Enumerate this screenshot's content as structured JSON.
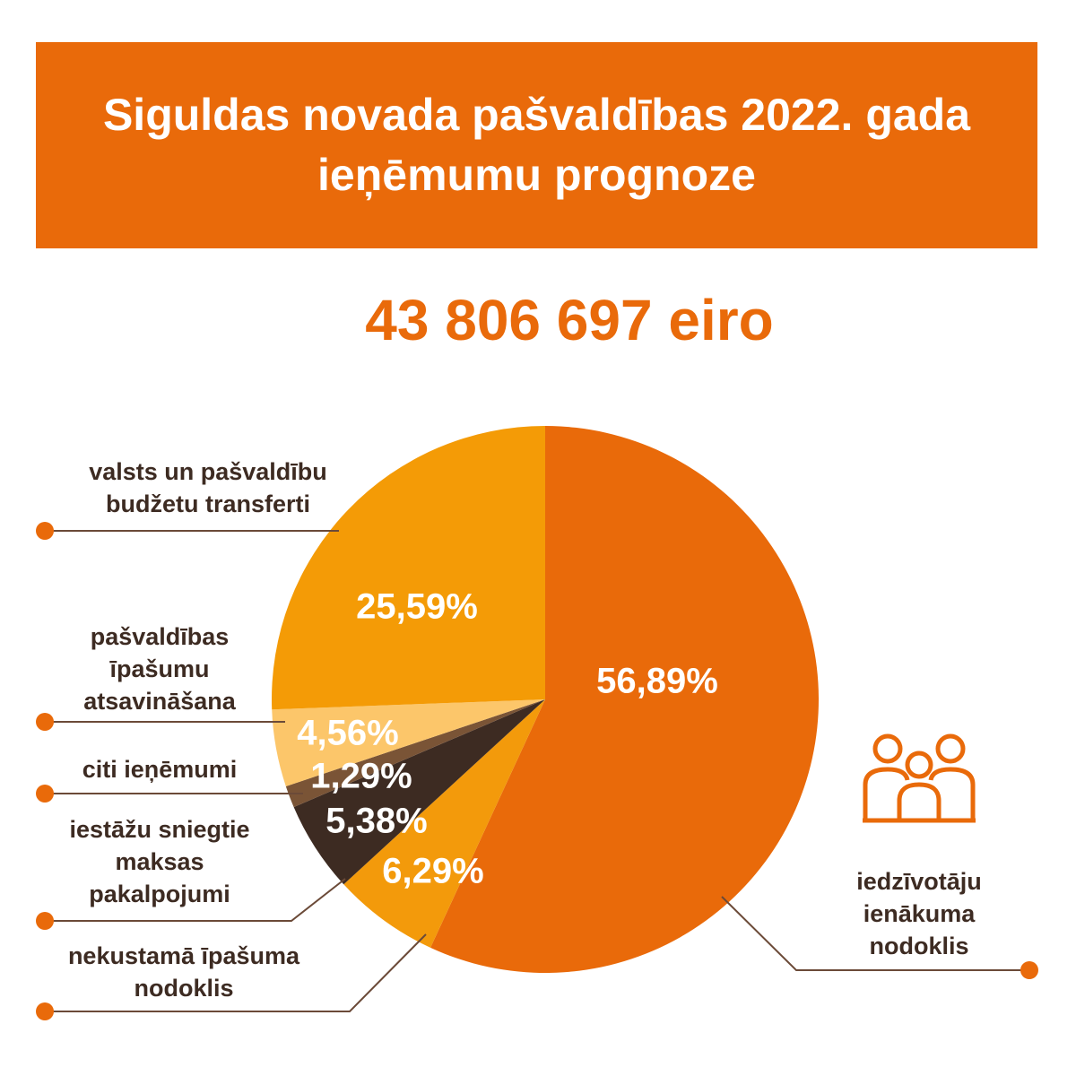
{
  "chart_data": {
    "type": "pie",
    "title": "Siguldas novada pašvaldības 2022. gada ieņēmumu prognoze",
    "subtitle": "43 806 697 eiro",
    "categories": [
      "iedzīvotāju ienākuma nodoklis",
      "nekustamā īpašuma nodoklis",
      "iestāžu sniegtie maksas pakalpojumi",
      "citi ieņēmumi",
      "pašvaldības īpašumu atsavināšana",
      "valsts un pašvaldību budžetu transferti"
    ],
    "values": [
      56.89,
      6.29,
      5.38,
      1.29,
      4.56,
      25.59
    ],
    "value_labels": [
      "56,89%",
      "6,29%",
      "5,38%",
      "1,29%",
      "4,56%",
      "25,59%"
    ],
    "colors": [
      "#e96a0a",
      "#f39a0b",
      "#3d2b22",
      "#7a5436",
      "#fcc66a",
      "#f49b06"
    ]
  }
}
